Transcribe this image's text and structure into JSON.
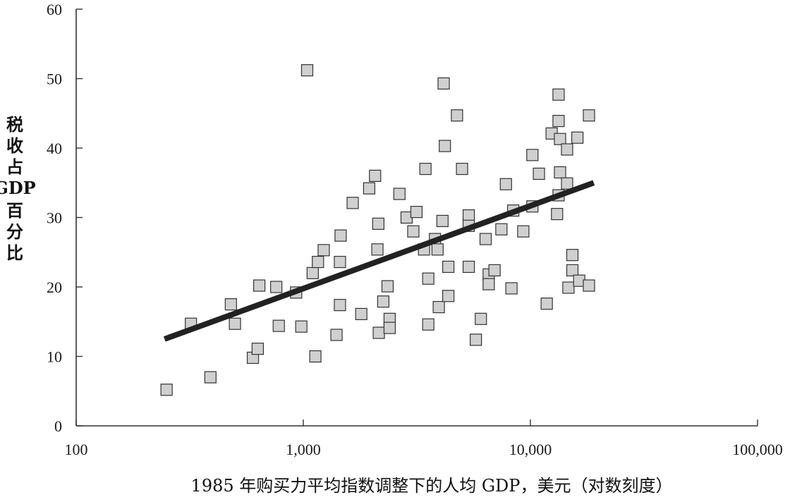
{
  "chart_data": {
    "type": "scatter",
    "xlabel": "1985 年购买力平均指数调整下的人均 GDP，美元（对数刻度）",
    "ylabel": "税收占 GDP 百分比",
    "x_scale": "log",
    "xlim": [
      100,
      100000
    ],
    "ylim": [
      0,
      60
    ],
    "x_ticks": [
      100,
      1000,
      10000,
      100000
    ],
    "x_tick_labels": [
      "100",
      "1,000",
      "10,000",
      "100,000"
    ],
    "y_ticks": [
      0,
      10,
      20,
      30,
      40,
      50,
      60
    ],
    "y_tick_labels": [
      "0",
      "10",
      "20",
      "30",
      "40",
      "50",
      "60"
    ],
    "grid": false,
    "legend": "none",
    "colors": {
      "marker_fill": "#d0d0d0",
      "marker_edge": "#333333",
      "trend_line": "#222222",
      "axis": "#333333"
    },
    "points": [
      [
        250,
        5.2
      ],
      [
        320,
        14.7
      ],
      [
        390,
        7.0
      ],
      [
        480,
        17.5
      ],
      [
        500,
        14.7
      ],
      [
        600,
        9.8
      ],
      [
        630,
        11.1
      ],
      [
        640,
        20.2
      ],
      [
        760,
        20.0
      ],
      [
        780,
        14.4
      ],
      [
        930,
        19.2
      ],
      [
        980,
        14.3
      ],
      [
        1040,
        51.2
      ],
      [
        1100,
        22.0
      ],
      [
        1130,
        10.0
      ],
      [
        1160,
        23.6
      ],
      [
        1230,
        25.3
      ],
      [
        1400,
        13.1
      ],
      [
        1450,
        17.4
      ],
      [
        1450,
        23.6
      ],
      [
        1460,
        27.4
      ],
      [
        1650,
        32.1
      ],
      [
        1800,
        16.1
      ],
      [
        1950,
        34.2
      ],
      [
        2070,
        36.0
      ],
      [
        2120,
        25.4
      ],
      [
        2140,
        29.1
      ],
      [
        2150,
        13.4
      ],
      [
        2250,
        17.9
      ],
      [
        2350,
        20.1
      ],
      [
        2400,
        15.4
      ],
      [
        2400,
        14.1
      ],
      [
        2650,
        33.4
      ],
      [
        2850,
        30.0
      ],
      [
        3050,
        28.0
      ],
      [
        3150,
        30.8
      ],
      [
        3400,
        25.4
      ],
      [
        3450,
        37.0
      ],
      [
        3550,
        21.2
      ],
      [
        3550,
        14.6
      ],
      [
        3800,
        26.9
      ],
      [
        3900,
        25.4
      ],
      [
        3950,
        17.1
      ],
      [
        4100,
        29.5
      ],
      [
        4150,
        49.3
      ],
      [
        4200,
        40.3
      ],
      [
        4350,
        22.9
      ],
      [
        4350,
        18.7
      ],
      [
        4750,
        44.7
      ],
      [
        5000,
        37.0
      ],
      [
        5350,
        30.3
      ],
      [
        5350,
        28.8
      ],
      [
        5350,
        22.9
      ],
      [
        5750,
        12.4
      ],
      [
        6050,
        15.4
      ],
      [
        6350,
        26.9
      ],
      [
        6550,
        21.8
      ],
      [
        6550,
        20.4
      ],
      [
        6950,
        22.4
      ],
      [
        7450,
        28.3
      ],
      [
        7800,
        34.8
      ],
      [
        8250,
        19.8
      ],
      [
        8400,
        31.0
      ],
      [
        9300,
        28.0
      ],
      [
        10200,
        39.0
      ],
      [
        10200,
        31.6
      ],
      [
        10900,
        36.3
      ],
      [
        11800,
        17.6
      ],
      [
        12400,
        42.1
      ],
      [
        13100,
        30.5
      ],
      [
        13300,
        33.2
      ],
      [
        13300,
        47.7
      ],
      [
        13300,
        43.9
      ],
      [
        13500,
        41.3
      ],
      [
        13500,
        36.5
      ],
      [
        14500,
        39.8
      ],
      [
        14500,
        34.9
      ],
      [
        14700,
        19.9
      ],
      [
        15300,
        24.6
      ],
      [
        15300,
        22.4
      ],
      [
        16100,
        41.5
      ],
      [
        16400,
        20.9
      ],
      [
        18100,
        20.2
      ],
      [
        18100,
        44.7
      ]
    ],
    "trend_line": {
      "x": [
        245,
        19000
      ],
      "y": [
        12.5,
        35.0
      ]
    }
  }
}
